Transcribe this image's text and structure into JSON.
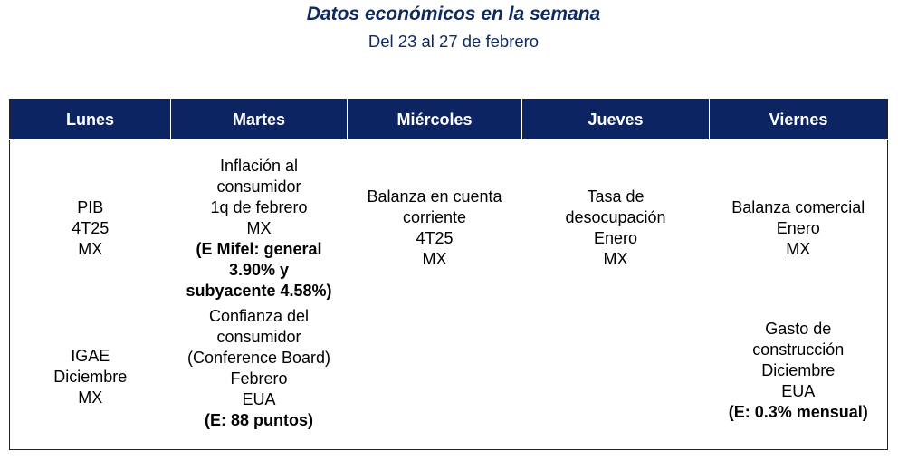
{
  "title": "Datos económicos en la semana",
  "subtitle": "Del 23 al 27 de febrero",
  "days": [
    "Lunes",
    "Martes",
    "Miércoles",
    "Jueves",
    "Viernes"
  ],
  "rows": [
    {
      "lunes": [
        "PIB",
        "4T25",
        "MX"
      ],
      "martes": [
        "Inflación al",
        "consumidor",
        "1q de febrero",
        "MX"
      ],
      "martes_estimate": [
        "(E Mifel: general",
        "3.90% y",
        "subyacente 4.58%)"
      ],
      "miercoles": [
        "Balanza en cuenta",
        "corriente",
        "4T25",
        "MX"
      ],
      "jueves": [
        "Tasa de",
        "desocupación",
        "Enero",
        "MX"
      ],
      "viernes": [
        "Balanza comercial",
        "Enero",
        "MX"
      ]
    },
    {
      "lunes": [
        "IGAE",
        "Diciembre",
        "MX"
      ],
      "martes": [
        "Confianza del",
        "consumidor",
        "(Conference Board)",
        "Febrero",
        "EUA"
      ],
      "martes_estimate": [
        "(E: 88 puntos)"
      ],
      "viernes": [
        "Gasto de",
        "construcción",
        "Diciembre",
        "EUA"
      ],
      "viernes_estimate": [
        "(E: 0.3% mensual)"
      ]
    }
  ]
}
